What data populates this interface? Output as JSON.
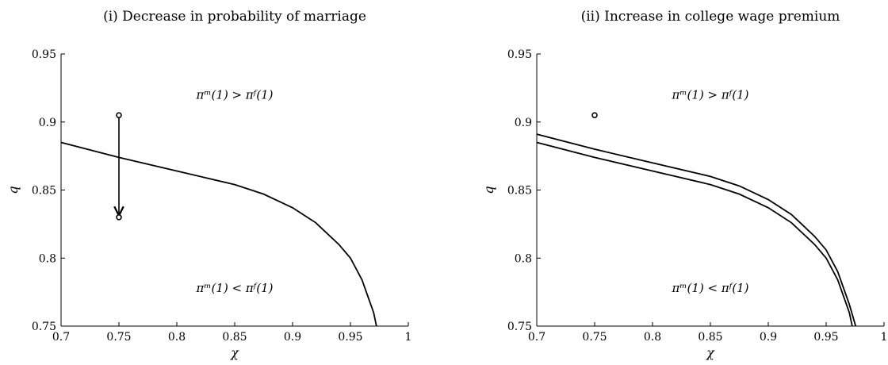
{
  "chart_data": [
    {
      "type": "line",
      "title": "(i) Decrease in probability of marriage",
      "xlabel": "χ",
      "ylabel": "q",
      "xlim": [
        0.7,
        1.0
      ],
      "ylim": [
        0.75,
        0.95
      ],
      "xticks": [
        "0.7",
        "0.75",
        "0.8",
        "0.85",
        "0.9",
        "0.95",
        "1"
      ],
      "yticks": [
        "0.75",
        "0.8",
        "0.85",
        "0.9",
        "0.95"
      ],
      "annotations": [
        {
          "text": "πᵐ(1) > πᶠ(1)",
          "x": 0.85,
          "y": 0.92
        },
        {
          "text": "πᵐ(1) < πᶠ(1)",
          "x": 0.85,
          "y": 0.778
        }
      ],
      "series": [
        {
          "x": [
            0.7,
            0.75,
            0.8,
            0.85,
            0.875,
            0.9,
            0.92,
            0.94,
            0.95,
            0.96,
            0.965,
            0.97,
            0.9725
          ],
          "y": [
            0.885,
            0.874,
            0.864,
            0.854,
            0.847,
            0.837,
            0.826,
            0.81,
            0.8,
            0.784,
            0.772,
            0.76,
            0.75
          ]
        }
      ],
      "points": [
        {
          "x": 0.75,
          "y": 0.905
        },
        {
          "x": 0.75,
          "y": 0.83
        }
      ],
      "arrow": {
        "from": [
          0.75,
          0.905
        ],
        "to": [
          0.75,
          0.83
        ]
      }
    },
    {
      "type": "line",
      "title": "(ii) Increase in college wage premium",
      "xlabel": "χ",
      "ylabel": "q",
      "xlim": [
        0.7,
        1.0
      ],
      "ylim": [
        0.75,
        0.95
      ],
      "xticks": [
        "0.7",
        "0.75",
        "0.8",
        "0.85",
        "0.9",
        "0.95",
        "1"
      ],
      "yticks": [
        "0.75",
        "0.8",
        "0.85",
        "0.9",
        "0.95"
      ],
      "annotations": [
        {
          "text": "πᵐ(1) > πᶠ(1)",
          "x": 0.85,
          "y": 0.92
        },
        {
          "text": "πᵐ(1) < πᶠ(1)",
          "x": 0.85,
          "y": 0.778
        }
      ],
      "series": [
        {
          "x": [
            0.7,
            0.75,
            0.8,
            0.85,
            0.875,
            0.9,
            0.92,
            0.94,
            0.95,
            0.96,
            0.965,
            0.97,
            0.9725
          ],
          "y": [
            0.885,
            0.874,
            0.864,
            0.854,
            0.847,
            0.837,
            0.826,
            0.81,
            0.8,
            0.784,
            0.772,
            0.76,
            0.75
          ]
        },
        {
          "x": [
            0.7,
            0.75,
            0.8,
            0.85,
            0.875,
            0.9,
            0.92,
            0.94,
            0.95,
            0.96,
            0.965,
            0.97,
            0.9755
          ],
          "y": [
            0.891,
            0.88,
            0.87,
            0.86,
            0.853,
            0.843,
            0.832,
            0.816,
            0.806,
            0.79,
            0.778,
            0.766,
            0.75
          ]
        }
      ],
      "points": [
        {
          "x": 0.75,
          "y": 0.905
        }
      ]
    }
  ]
}
